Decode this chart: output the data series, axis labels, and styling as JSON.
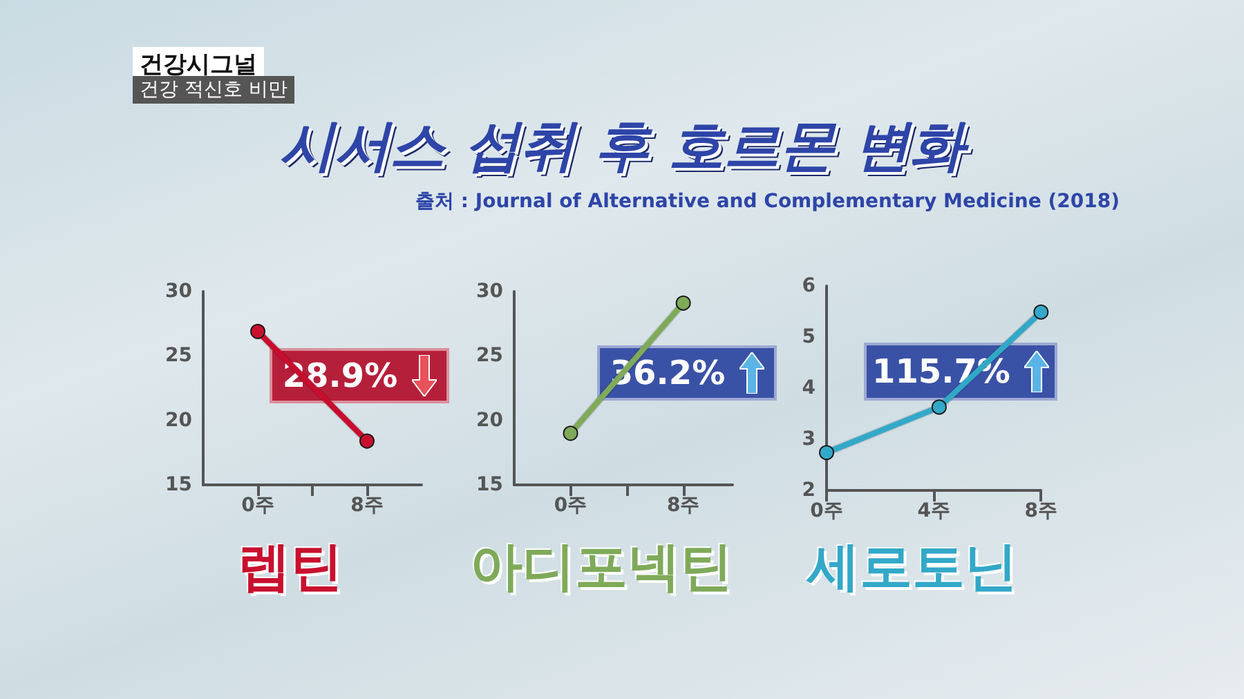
{
  "chart_data": [
    {
      "type": "line",
      "title": "렙틴",
      "x": [
        0,
        8
      ],
      "values": [
        26.9,
        18.4
      ],
      "color": "#c8102e",
      "xlim": [
        -4,
        12
      ],
      "ylim": [
        15,
        30
      ],
      "yticks": [
        15,
        20,
        25,
        30
      ],
      "xticks": [
        {
          "value": 0,
          "label": "0주"
        },
        {
          "value": 4,
          "label": null
        },
        {
          "value": 8,
          "label": "8주"
        }
      ],
      "marker": "circle",
      "grid": false,
      "annotations": [
        "시서스 섭취 후 호르몬 변화",
        "출처 : Journal of Alternative and Complementary Medicine (2018)",
        "건강시그널",
        "건강 적신호 비만",
        "28.9%"
      ]
    },
    {
      "type": "line",
      "title": "아디포넥틴",
      "x": [
        0,
        8
      ],
      "values": [
        19.0,
        29.1
      ],
      "color": "#7faa5a",
      "xlim": [
        -4,
        11.5
      ],
      "ylim": [
        15,
        30
      ],
      "yticks": [
        15,
        20,
        25,
        30
      ],
      "xticks": [
        {
          "value": 0,
          "label": "0주"
        },
        {
          "value": 4,
          "label": null
        },
        {
          "value": 8,
          "label": "8주"
        }
      ],
      "marker": "circle",
      "grid": false,
      "annotations": [
        "36.2%"
      ]
    },
    {
      "type": "line",
      "title": "세로토닌",
      "x": [
        0,
        4.2,
        8
      ],
      "values": [
        2.74,
        3.63,
        5.49
      ],
      "color": "#33a8c8",
      "xlim": [
        0,
        8
      ],
      "ylim": [
        2,
        6
      ],
      "yticks": [
        2,
        3,
        4,
        5,
        6
      ],
      "xticks": [
        {
          "value": 0,
          "label": "0주"
        },
        {
          "value": 4,
          "label": "4주"
        },
        {
          "value": 8,
          "label": "8주"
        }
      ],
      "marker": "circle",
      "grid": false,
      "annotations": [
        "115.7%"
      ]
    }
  ]
}
